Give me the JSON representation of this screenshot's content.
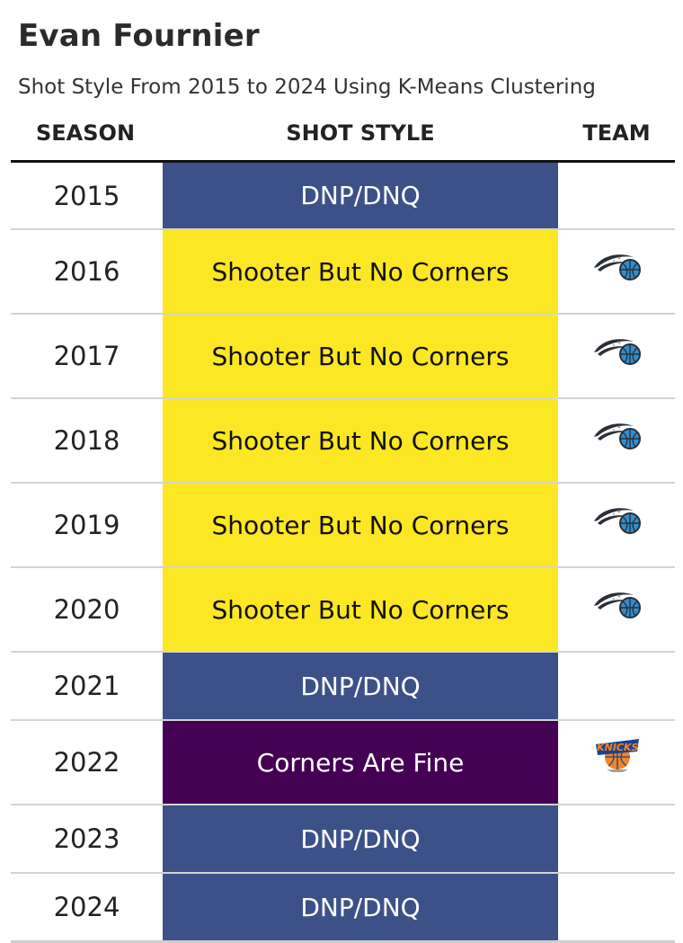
{
  "title": "Evan Fournier",
  "subtitle": "Shot Style From 2015 to 2024 Using K-Means Clustering",
  "headers": {
    "season": "SEASON",
    "style": "SHOT STYLE",
    "team": "TEAM"
  },
  "colors": {
    "DNP/DNQ": "#3c5188",
    "Shooter But No Corners": "#fbe723",
    "Corners Are Fine": "#440154"
  },
  "text_colors": {
    "DNP/DNQ": "#ffffff",
    "Shooter But No Corners": "#111111",
    "Corners Are Fine": "#ffffff"
  },
  "chart_data": {
    "type": "table",
    "columns": [
      "SEASON",
      "SHOT STYLE",
      "TEAM"
    ],
    "rows": [
      {
        "season": "2015",
        "style": "DNP/DNQ",
        "team": ""
      },
      {
        "season": "2016",
        "style": "Shooter But No Corners",
        "team": "magic-logo-icon"
      },
      {
        "season": "2017",
        "style": "Shooter But No Corners",
        "team": "magic-logo-icon"
      },
      {
        "season": "2018",
        "style": "Shooter But No Corners",
        "team": "magic-logo-icon"
      },
      {
        "season": "2019",
        "style": "Shooter But No Corners",
        "team": "magic-logo-icon"
      },
      {
        "season": "2020",
        "style": "Shooter But No Corners",
        "team": "magic-logo-icon"
      },
      {
        "season": "2021",
        "style": "DNP/DNQ",
        "team": ""
      },
      {
        "season": "2022",
        "style": "Corners Are Fine",
        "team": "knicks-logo-icon"
      },
      {
        "season": "2023",
        "style": "DNP/DNQ",
        "team": ""
      },
      {
        "season": "2024",
        "style": "DNP/DNQ",
        "team": ""
      }
    ]
  }
}
